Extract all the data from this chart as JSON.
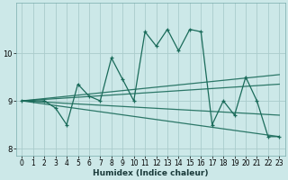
{
  "xlabel": "Humidex (Indice chaleur)",
  "bg_color": "#cce8e8",
  "grid_color": "#aacccc",
  "line_color": "#1a6b5a",
  "x_data": [
    0,
    1,
    2,
    3,
    4,
    5,
    6,
    7,
    8,
    9,
    10,
    11,
    12,
    13,
    14,
    15,
    16,
    17,
    18,
    19,
    20,
    21,
    22,
    23
  ],
  "y_main": [
    9.0,
    9.0,
    9.0,
    8.85,
    8.5,
    9.35,
    9.1,
    9.0,
    9.9,
    9.45,
    9.0,
    10.45,
    10.15,
    10.5,
    10.05,
    10.5,
    10.45,
    8.5,
    9.0,
    8.7,
    9.5,
    9.0,
    8.25,
    8.25
  ],
  "ylim": [
    7.85,
    11.05
  ],
  "xlim": [
    -0.5,
    23.5
  ],
  "yticks": [
    8,
    9,
    10
  ],
  "xticks": [
    0,
    1,
    2,
    3,
    4,
    5,
    6,
    7,
    8,
    9,
    10,
    11,
    12,
    13,
    14,
    15,
    16,
    17,
    18,
    19,
    20,
    21,
    22,
    23
  ],
  "trend_lines": [
    {
      "x_start": 0,
      "y_start": 9.0,
      "x_end": 23,
      "y_end": 8.25
    },
    {
      "x_start": 0,
      "y_start": 9.0,
      "x_end": 23,
      "y_end": 8.7
    },
    {
      "x_start": 0,
      "y_start": 9.0,
      "x_end": 23,
      "y_end": 9.35
    },
    {
      "x_start": 0,
      "y_start": 9.0,
      "x_end": 23,
      "y_end": 9.55
    }
  ],
  "tick_fontsize": 5.5,
  "xlabel_fontsize": 6.5
}
